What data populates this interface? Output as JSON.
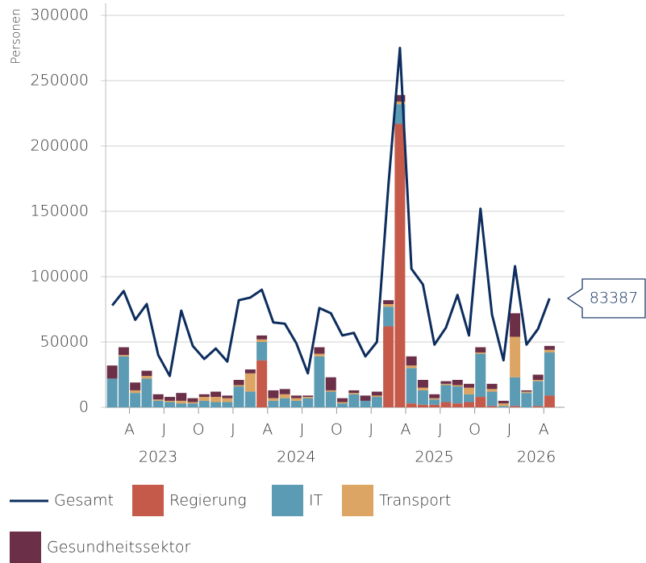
{
  "chart_data": {
    "type": "combo",
    "y_label": "Personen",
    "categories": [
      null,
      null,
      "A",
      null,
      null,
      "J",
      null,
      null,
      "O",
      null,
      null,
      "J",
      null,
      null,
      "A",
      null,
      null,
      "J",
      null,
      null,
      "O",
      null,
      null,
      "J",
      null,
      null,
      "A",
      null,
      null,
      "J",
      null,
      null,
      "O",
      null,
      null,
      "J",
      null,
      null,
      "A"
    ],
    "years": [
      "2023",
      "2024",
      "2025",
      "2026"
    ],
    "ylim": [
      0,
      300000
    ],
    "yticks": [
      0,
      50000,
      100000,
      150000,
      200000,
      250000,
      300000
    ],
    "grid": true,
    "series": [
      {
        "name": "Gesamt",
        "type": "line",
        "color": "#0d2d5e",
        "values": [
          78000,
          89000,
          67000,
          79000,
          40000,
          24000,
          74000,
          47000,
          37000,
          45000,
          35000,
          82000,
          84000,
          90000,
          65000,
          64000,
          49000,
          26000,
          76000,
          72000,
          55000,
          57000,
          39000,
          50000,
          170000,
          275000,
          106000,
          94000,
          48000,
          61000,
          86000,
          55000,
          152000,
          71000,
          36000,
          108000,
          48000,
          60000,
          83387
        ]
      },
      {
        "name": "Regierung",
        "type": "bar",
        "color": "#c65a4a",
        "values": [
          0,
          0,
          0,
          0,
          0,
          0,
          0,
          0,
          0,
          0,
          0,
          0,
          0,
          36000,
          0,
          0,
          0,
          0,
          0,
          0,
          0,
          0,
          0,
          0,
          62000,
          217000,
          3000,
          2000,
          2000,
          4000,
          3000,
          4000,
          8000,
          1000,
          0,
          1000,
          0,
          1000,
          9000
        ]
      },
      {
        "name": "IT",
        "type": "bar",
        "color": "#5b9bb3",
        "values": [
          22000,
          39000,
          11000,
          22000,
          5000,
          4000,
          3000,
          3000,
          5000,
          4000,
          4000,
          16000,
          12000,
          14000,
          5000,
          7000,
          5000,
          7000,
          39000,
          12000,
          3000,
          10000,
          5000,
          8000,
          15000,
          15000,
          27000,
          11000,
          4000,
          13000,
          13000,
          6000,
          33000,
          11000,
          1000,
          22000,
          11000,
          19000,
          33000
        ]
      },
      {
        "name": "Transport",
        "type": "bar",
        "color": "#dca564",
        "values": [
          0,
          1000,
          2000,
          2000,
          1000,
          1000,
          2000,
          1000,
          3000,
          4000,
          3000,
          1000,
          14000,
          2000,
          2000,
          3000,
          2000,
          1000,
          2000,
          1000,
          1000,
          1000,
          0,
          1000,
          2000,
          2000,
          2000,
          2000,
          1000,
          1000,
          1000,
          5000,
          1000,
          2000,
          2000,
          31000,
          1000,
          1000,
          2000
        ]
      },
      {
        "name": "Gesundheitssektor",
        "type": "bar",
        "color": "#6b3048",
        "values": [
          10000,
          6000,
          6000,
          4000,
          4000,
          3000,
          6000,
          3000,
          2000,
          4000,
          2000,
          4000,
          3000,
          3000,
          6000,
          4000,
          2000,
          1000,
          5000,
          10000,
          3000,
          2000,
          4000,
          3000,
          3000,
          5000,
          7000,
          6000,
          3000,
          2000,
          4000,
          3000,
          4000,
          4000,
          2000,
          18000,
          1000,
          4000,
          3000
        ]
      }
    ],
    "annotation": 83387
  }
}
